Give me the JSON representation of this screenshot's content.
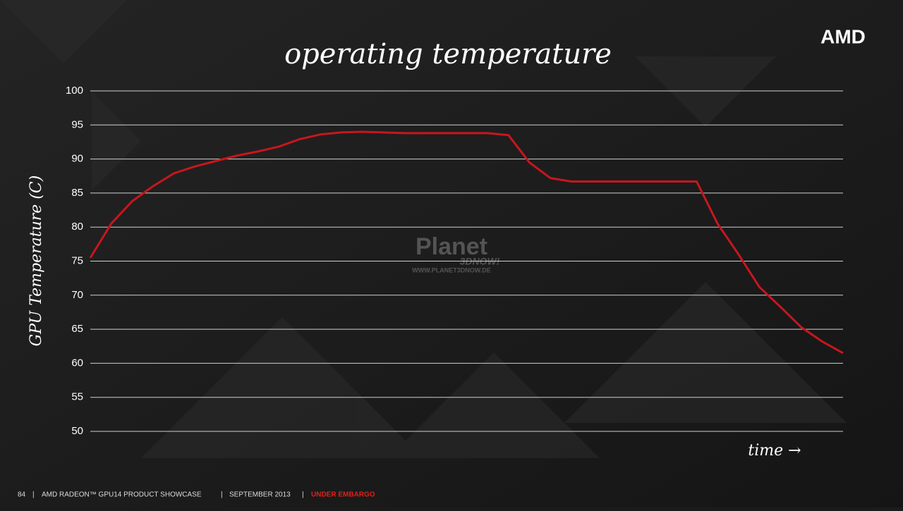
{
  "chart_data": {
    "type": "line",
    "title": "operating temperature",
    "y_label": "GPU Temperature (C)",
    "x_label": "time →",
    "logo": "AMD",
    "watermark": "Planet",
    "watermark_sub": "3DNOW!",
    "watermark_url": "WWW.PLANET3DNOW.DE",
    "ylim": [
      50,
      100
    ],
    "yticks": [
      50,
      55,
      60,
      65,
      70,
      75,
      80,
      85,
      90,
      95,
      100
    ],
    "grid": true,
    "series": [
      {
        "color": "#c8161e",
        "values": [
          75.5,
          80.5,
          83.8,
          86,
          87.9,
          88.9,
          89.7,
          90.5,
          91.1,
          91.8,
          92.9,
          93.6,
          93.9,
          94,
          93.9,
          93.8,
          93.8,
          93.8,
          93.8,
          93.8,
          93.5,
          89.5,
          87.2,
          86.7,
          86.7,
          86.7,
          86.7,
          86.7,
          86.7,
          86.7,
          80.5,
          76,
          71.2,
          68.3,
          65.3,
          63.2,
          61.5
        ]
      }
    ]
  },
  "footer": {
    "page": "84",
    "product": "AMD RADEON™ GPU14 PRODUCT SHOWCASE",
    "date": "SEPTEMBER 2013",
    "status": "UNDER EMBARGO"
  }
}
